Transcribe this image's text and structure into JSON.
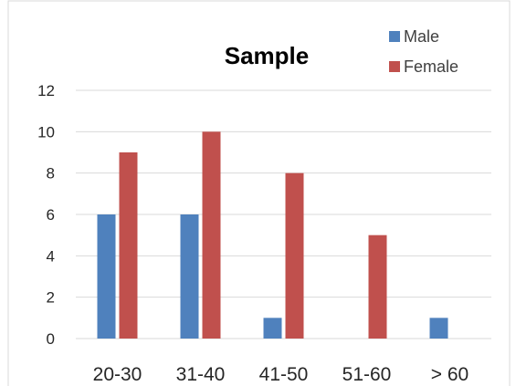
{
  "chart_data": {
    "type": "bar",
    "title": "Sample",
    "categories": [
      "20-30",
      "31-40",
      "41-50",
      "51-60",
      "> 60"
    ],
    "series": [
      {
        "name": "Male",
        "values": [
          6,
          6,
          1,
          0,
          1
        ],
        "color": "#4f81bd"
      },
      {
        "name": "Female",
        "values": [
          9,
          10,
          8,
          5,
          0
        ],
        "color": "#c0504d"
      }
    ],
    "ylim": [
      0,
      12
    ],
    "yticks": [
      0,
      2,
      4,
      6,
      8,
      10,
      12
    ],
    "grid": true,
    "legend": "top-right"
  }
}
